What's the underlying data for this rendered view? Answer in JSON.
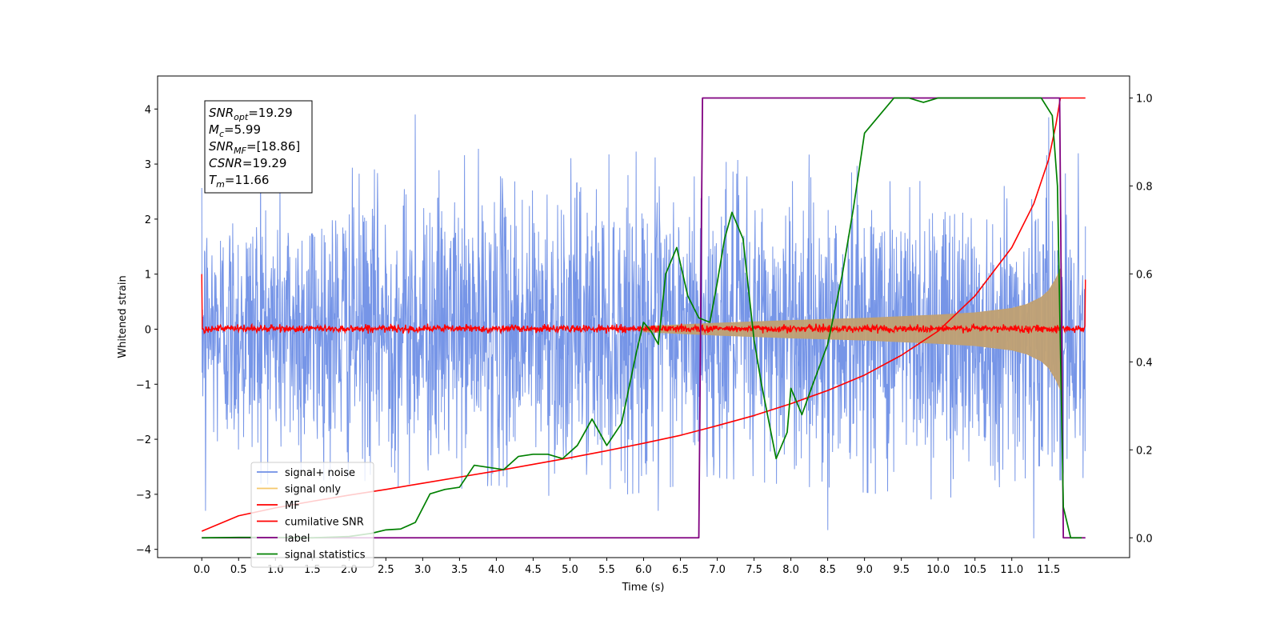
{
  "chart_data": {
    "type": "line",
    "title": "",
    "xlabel": "Time (s)",
    "ylabel": "Whitened strain",
    "ylabel_right": "",
    "xlim": [
      -0.6,
      12.6
    ],
    "ylim": [
      -4.15,
      4.6
    ],
    "y2lim": [
      -0.045,
      1.05
    ],
    "x_ticks": [
      0.0,
      0.5,
      1.0,
      1.5,
      2.0,
      2.5,
      3.0,
      3.5,
      4.0,
      4.5,
      5.0,
      5.5,
      6.0,
      6.5,
      7.0,
      7.5,
      8.0,
      8.5,
      9.0,
      9.5,
      10.0,
      10.5,
      11.0,
      11.5
    ],
    "x_tick_labels": [
      "0.0",
      "0.5",
      "1.0",
      "1.5",
      "2.0",
      "2.5",
      "3.0",
      "3.5",
      "4.0",
      "4.5",
      "5.0",
      "5.5",
      "6.0",
      "6.5",
      "7.0",
      "7.5",
      "8.0",
      "8.5",
      "9.0",
      "9.5",
      "10.0",
      "10.5",
      "11.0",
      "11.5"
    ],
    "y_ticks": [
      -4,
      -3,
      -2,
      -1,
      0,
      1,
      2,
      3,
      4
    ],
    "y_tick_labels": [
      "−4",
      "−3",
      "−2",
      "−1",
      "0",
      "1",
      "2",
      "3",
      "4"
    ],
    "y2_ticks": [
      0.0,
      0.2,
      0.4,
      0.6,
      0.8,
      1.0
    ],
    "y2_tick_labels": [
      "0.0",
      "0.2",
      "0.4",
      "0.6",
      "0.8",
      "1.0"
    ],
    "grid": false,
    "legend_position": "lower-left",
    "legend": [
      {
        "label": "signal+ noise",
        "color": "#6f8fe6"
      },
      {
        "label": "signal only",
        "color": "#f5c76a"
      },
      {
        "label": "MF",
        "color": "#ff0000"
      },
      {
        "label": "cumilative SNR",
        "color": "#ff0000"
      },
      {
        "label": "label",
        "color": "#800080"
      },
      {
        "label": "signal statistics",
        "color": "#008000"
      }
    ],
    "annotation": [
      {
        "base": "SNR",
        "sub": "opt",
        "value": "=19.29"
      },
      {
        "base": "M",
        "sub": "c",
        "value": "=5.99"
      },
      {
        "base": "SNR",
        "sub": "MF",
        "value": "=[18.86]"
      },
      {
        "base": "CSNR",
        "sub": "",
        "value": "=19.29"
      },
      {
        "base": "T",
        "sub": "m",
        "value": "=11.66"
      }
    ],
    "series": [
      {
        "name": "signal+ noise",
        "axis": "left",
        "color": "#6f8fe6",
        "x_range": [
          0.0,
          12.0
        ],
        "envelope_hi": [
          1.9,
          2.3,
          2.4,
          2.2,
          2.5,
          2.3,
          2.4,
          2.6,
          2.3,
          2.5,
          2.4,
          2.2,
          2.5
        ],
        "envelope_lo": [
          -2.0,
          -2.1,
          -2.0,
          -2.2,
          -2.1,
          -2.3,
          -2.2,
          -2.0,
          -2.1,
          -2.2,
          -2.3,
          -2.1,
          -2.0
        ],
        "spikes": [
          [
            0.05,
            -3.3
          ],
          [
            0.8,
            4.15
          ],
          [
            2.9,
            3.9
          ],
          [
            6.2,
            -3.3
          ],
          [
            8.5,
            -3.65
          ],
          [
            11.3,
            -3.8
          ],
          [
            11.5,
            3.85
          ]
        ]
      },
      {
        "name": "signal only",
        "axis": "left",
        "color": "#c0a072",
        "x": [
          6.0,
          7.0,
          8.0,
          9.0,
          10.0,
          10.5,
          11.0,
          11.2,
          11.4,
          11.5,
          11.6,
          11.66
        ],
        "amplitude": [
          0.05,
          0.11,
          0.16,
          0.2,
          0.26,
          0.3,
          0.38,
          0.45,
          0.58,
          0.7,
          0.92,
          1.1
        ]
      },
      {
        "name": "MF",
        "axis": "left",
        "color": "#ff0000",
        "x_range": [
          0.0,
          12.0
        ],
        "band": [
          -0.08,
          0.1
        ],
        "start_value": 1.0,
        "end_value": 0.9
      },
      {
        "name": "cumilative SNR",
        "axis": "right",
        "color": "#ff0000",
        "x": [
          0.0,
          0.5,
          1.0,
          1.5,
          2.0,
          2.5,
          3.0,
          3.5,
          4.0,
          4.5,
          5.0,
          5.5,
          6.0,
          6.5,
          7.0,
          7.5,
          8.0,
          8.5,
          9.0,
          9.5,
          10.0,
          10.5,
          11.0,
          11.3,
          11.5,
          11.6,
          11.66,
          12.0
        ],
        "y": [
          0.015,
          0.05,
          0.068,
          0.083,
          0.097,
          0.11,
          0.124,
          0.138,
          0.152,
          0.167,
          0.182,
          0.198,
          0.215,
          0.233,
          0.255,
          0.278,
          0.305,
          0.335,
          0.37,
          0.415,
          0.47,
          0.55,
          0.66,
          0.76,
          0.86,
          0.94,
          1.0,
          1.0
        ]
      },
      {
        "name": "label",
        "axis": "right",
        "color": "#800080",
        "x": [
          0.0,
          6.75,
          6.8,
          11.65,
          11.7,
          12.0
        ],
        "y": [
          0.0,
          0.0,
          1.0,
          1.0,
          0.0,
          0.0
        ]
      },
      {
        "name": "signal statistics",
        "axis": "right",
        "color": "#008000",
        "x": [
          0.0,
          0.5,
          1.0,
          1.5,
          2.0,
          2.3,
          2.5,
          2.7,
          2.9,
          3.1,
          3.3,
          3.5,
          3.7,
          3.9,
          4.1,
          4.3,
          4.5,
          4.7,
          4.9,
          5.1,
          5.3,
          5.5,
          5.7,
          5.9,
          6.0,
          6.1,
          6.2,
          6.3,
          6.45,
          6.6,
          6.75,
          6.9,
          7.0,
          7.1,
          7.2,
          7.35,
          7.5,
          7.6,
          7.8,
          7.95,
          8.0,
          8.15,
          8.3,
          8.5,
          8.7,
          8.85,
          9.0,
          9.2,
          9.4,
          9.6,
          9.8,
          10.0,
          10.5,
          11.0,
          11.4,
          11.55,
          11.62,
          11.7,
          11.8,
          11.95
        ],
        "y": [
          0.0,
          0.001,
          0.001,
          0.0,
          0.003,
          0.01,
          0.018,
          0.02,
          0.035,
          0.1,
          0.11,
          0.115,
          0.165,
          0.16,
          0.155,
          0.185,
          0.19,
          0.19,
          0.18,
          0.21,
          0.27,
          0.21,
          0.26,
          0.42,
          0.49,
          0.47,
          0.44,
          0.6,
          0.66,
          0.55,
          0.5,
          0.49,
          0.58,
          0.68,
          0.74,
          0.68,
          0.45,
          0.35,
          0.18,
          0.24,
          0.34,
          0.28,
          0.35,
          0.44,
          0.6,
          0.75,
          0.92,
          0.96,
          1.0,
          1.0,
          0.99,
          1.0,
          1.0,
          1.0,
          1.0,
          0.96,
          0.8,
          0.07,
          0.0,
          0.0
        ]
      }
    ]
  }
}
